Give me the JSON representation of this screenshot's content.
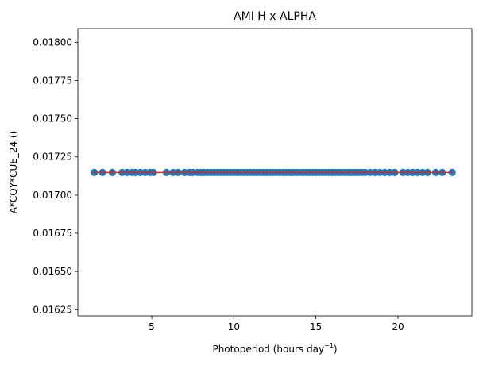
{
  "chart_data": {
    "type": "scatter",
    "title": "AMI H x ALPHA",
    "xlabel_base": "Photoperiod (hours day",
    "xlabel_sup": "−1",
    "xlabel_close": ")",
    "ylabel": "A*CQY*CUE_24 ()",
    "xlim": [
      0.5,
      24.5
    ],
    "ylim": [
      0.01621,
      0.01809
    ],
    "x_ticks": [
      5,
      10,
      15,
      20
    ],
    "x_tick_labels": [
      "5",
      "10",
      "15",
      "20"
    ],
    "y_ticks": [
      0.01625,
      0.0165,
      0.01675,
      0.017,
      0.01725,
      0.0175,
      0.01775,
      0.018
    ],
    "y_tick_labels": [
      "0.01625",
      "0.01650",
      "0.01675",
      "0.01700",
      "0.01725",
      "0.01750",
      "0.01775",
      "0.01800"
    ],
    "point_color": "#1f77b4",
    "line_color": "#d62728",
    "fit_line": {
      "x": [
        1.5,
        23.3
      ],
      "y": [
        0.017148,
        0.017148
      ]
    },
    "series": [
      {
        "y_value": 0.017148,
        "x": [
          1.5,
          2.0,
          2.6,
          3.2,
          3.5,
          3.8,
          4.0,
          4.3,
          4.6,
          4.9,
          5.1,
          5.9,
          6.3,
          6.6,
          7.0,
          7.3,
          7.5,
          7.8,
          8.0,
          8.2,
          8.4,
          8.6,
          8.8,
          9.0,
          9.2,
          9.4,
          9.6,
          9.8,
          10.0,
          10.2,
          10.4,
          10.6,
          10.8,
          11.0,
          11.2,
          11.4,
          11.6,
          11.8,
          12.0,
          12.2,
          12.4,
          12.6,
          12.8,
          13.0,
          13.2,
          13.4,
          13.6,
          13.8,
          14.0,
          14.2,
          14.4,
          14.6,
          14.8,
          15.0,
          15.2,
          15.4,
          15.6,
          15.8,
          16.0,
          16.2,
          16.4,
          16.6,
          16.8,
          17.0,
          17.2,
          17.4,
          17.6,
          17.8,
          18.0,
          18.3,
          18.6,
          18.9,
          19.2,
          19.5,
          19.8,
          20.3,
          20.6,
          20.9,
          21.2,
          21.5,
          21.8,
          22.3,
          22.7,
          23.3
        ]
      }
    ]
  }
}
